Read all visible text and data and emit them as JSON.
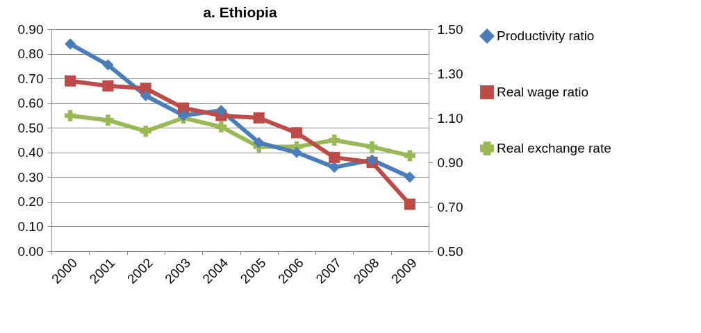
{
  "chart_data": {
    "type": "line",
    "title": "a.   Ethiopia",
    "categories": [
      "2000",
      "2001",
      "2002",
      "2003",
      "2004",
      "2005",
      "2006",
      "2007",
      "2008",
      "2009"
    ],
    "series": [
      {
        "name": "Productivity ratio",
        "color": "#4a7ebb",
        "marker": "diamond",
        "values": [
          0.84,
          0.755,
          0.63,
          0.55,
          0.57,
          0.44,
          0.4,
          0.34,
          0.37,
          0.3
        ]
      },
      {
        "name": "Real wage ratio",
        "color": "#be4b48",
        "marker": "square",
        "values": [
          0.69,
          0.67,
          0.66,
          0.58,
          0.55,
          0.54,
          0.48,
          0.38,
          0.36,
          0.19
        ]
      },
      {
        "name": "Real exchange rate",
        "color": "#98b954",
        "marker": "cross",
        "axis": "y2",
        "values": [
          1.11,
          1.09,
          1.04,
          1.1,
          1.06,
          0.97,
          0.97,
          1.0,
          0.97,
          0.93
        ]
      }
    ],
    "ylim": [
      0,
      0.9
    ],
    "yticks": [
      {
        "value": 0,
        "label": "0.00"
      },
      {
        "value": 0.1,
        "label": "0.10"
      },
      {
        "value": 0.2,
        "label": "0.20"
      },
      {
        "value": 0.3,
        "label": "0.30"
      },
      {
        "value": 0.4,
        "label": "0.40"
      },
      {
        "value": 0.5,
        "label": "0.50"
      },
      {
        "value": 0.6,
        "label": "0.60"
      },
      {
        "value": 0.7,
        "label": "0.70"
      },
      {
        "value": 0.8,
        "label": "0.80"
      },
      {
        "value": 0.9,
        "label": "0.90"
      }
    ],
    "y2lim": [
      0.5,
      1.5
    ],
    "y2ticks": [
      {
        "value": 0.5,
        "label": "0.50"
      },
      {
        "value": 0.7,
        "label": "0.70"
      },
      {
        "value": 0.9,
        "label": "0.90"
      },
      {
        "value": 1.1,
        "label": "1.10"
      },
      {
        "value": 1.3,
        "label": "1.30"
      },
      {
        "value": 1.5,
        "label": "1.50"
      }
    ],
    "grid": "y",
    "legend": "right"
  }
}
